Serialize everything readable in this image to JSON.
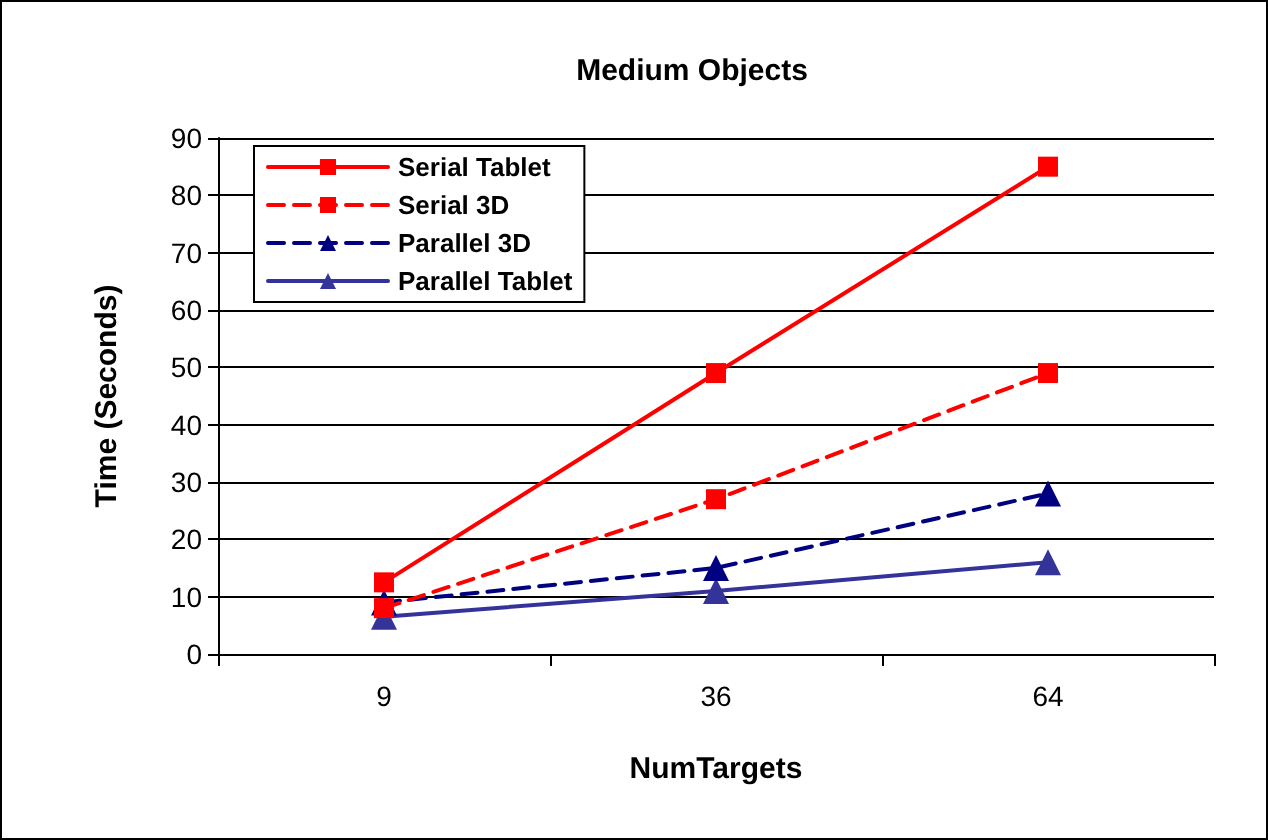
{
  "chart_data": {
    "type": "line",
    "title": "Medium Objects",
    "xlabel": "NumTargets",
    "ylabel": "Time (Seconds)",
    "categories": [
      "9",
      "36",
      "64"
    ],
    "series": [
      {
        "name": "Serial Tablet",
        "color": "#ff0000",
        "marker": "square",
        "line_style": "solid",
        "values": [
          12.5,
          49,
          85
        ]
      },
      {
        "name": "Serial 3D",
        "color": "#ff0000",
        "marker": "square",
        "line_style": "dashed",
        "values": [
          8,
          27,
          49
        ]
      },
      {
        "name": "Parallel 3D",
        "color": "#000080",
        "marker": "triangle",
        "line_style": "dashed",
        "values": [
          9,
          15,
          28
        ]
      },
      {
        "name": "Parallel Tablet",
        "color": "#333399",
        "marker": "triangle",
        "line_style": "solid",
        "values": [
          6.5,
          11,
          16
        ]
      }
    ],
    "ylim": [
      0,
      90
    ],
    "yticks": [
      0,
      10,
      20,
      30,
      40,
      50,
      60,
      70,
      80,
      90
    ],
    "grid": "y",
    "legend": "top left"
  }
}
